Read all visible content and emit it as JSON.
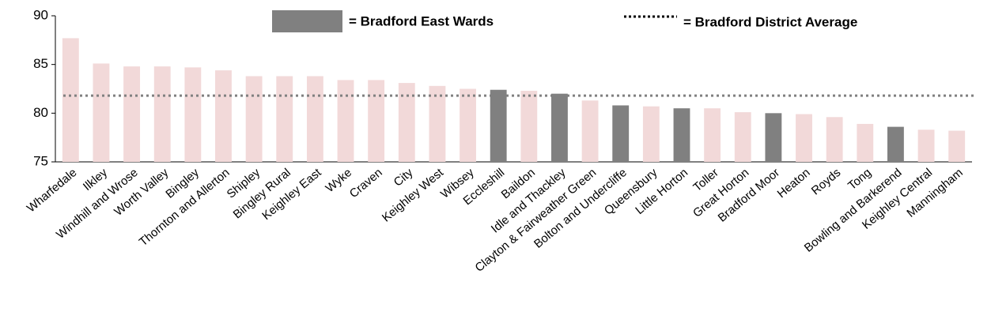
{
  "chart_data": {
    "type": "bar",
    "categories": [
      "Wharfedale",
      "Ilkley",
      "Windhill and Wrose",
      "Worth Valley",
      "Bingley",
      "Thornton and Allerton",
      "Shipley",
      "Bingley Rural",
      "Keighley East",
      "Wyke",
      "Craven",
      "City",
      "Keighley West",
      "Wibsey",
      "Eccleshill",
      "Baildon",
      "Idle and Thackley",
      "Clayton & Fairweather Green",
      "Bolton and Undercliffe",
      "Queensbury",
      "Little Horton",
      "Toller",
      "Great Horton",
      "Bradford Moor",
      "Heaton",
      "Royds",
      "Tong",
      "Bowling and Barkerend",
      "Keighley Central",
      "Manningham"
    ],
    "values": [
      87.7,
      85.1,
      84.8,
      84.8,
      84.7,
      84.4,
      83.8,
      83.8,
      83.8,
      83.4,
      83.4,
      83.1,
      82.8,
      82.5,
      82.4,
      82.3,
      82.0,
      81.3,
      80.8,
      80.7,
      80.5,
      80.5,
      80.1,
      80.0,
      79.9,
      79.6,
      78.9,
      78.6,
      78.3,
      78.2
    ],
    "colors": [
      "#f2d9d9",
      "#f2d9d9",
      "#f2d9d9",
      "#f2d9d9",
      "#f2d9d9",
      "#f2d9d9",
      "#f2d9d9",
      "#f2d9d9",
      "#f2d9d9",
      "#f2d9d9",
      "#f2d9d9",
      "#f2d9d9",
      "#f2d9d9",
      "#f2d9d9",
      "#808080",
      "#f2d9d9",
      "#808080",
      "#f2d9d9",
      "#808080",
      "#f2d9d9",
      "#808080",
      "#f2d9d9",
      "#f2d9d9",
      "#808080",
      "#f2d9d9",
      "#f2d9d9",
      "#f2d9d9",
      "#808080",
      "#f2d9d9",
      "#f2d9d9"
    ],
    "highlight_legend": {
      "name": "= Bradford East Wards",
      "color": "#808080"
    },
    "reference_line": {
      "name": "= Bradford District Average",
      "value": 81.8,
      "color": "#808080"
    },
    "ylim": [
      75,
      90
    ],
    "yticks": [
      75,
      80,
      85,
      90
    ],
    "grid": false
  }
}
